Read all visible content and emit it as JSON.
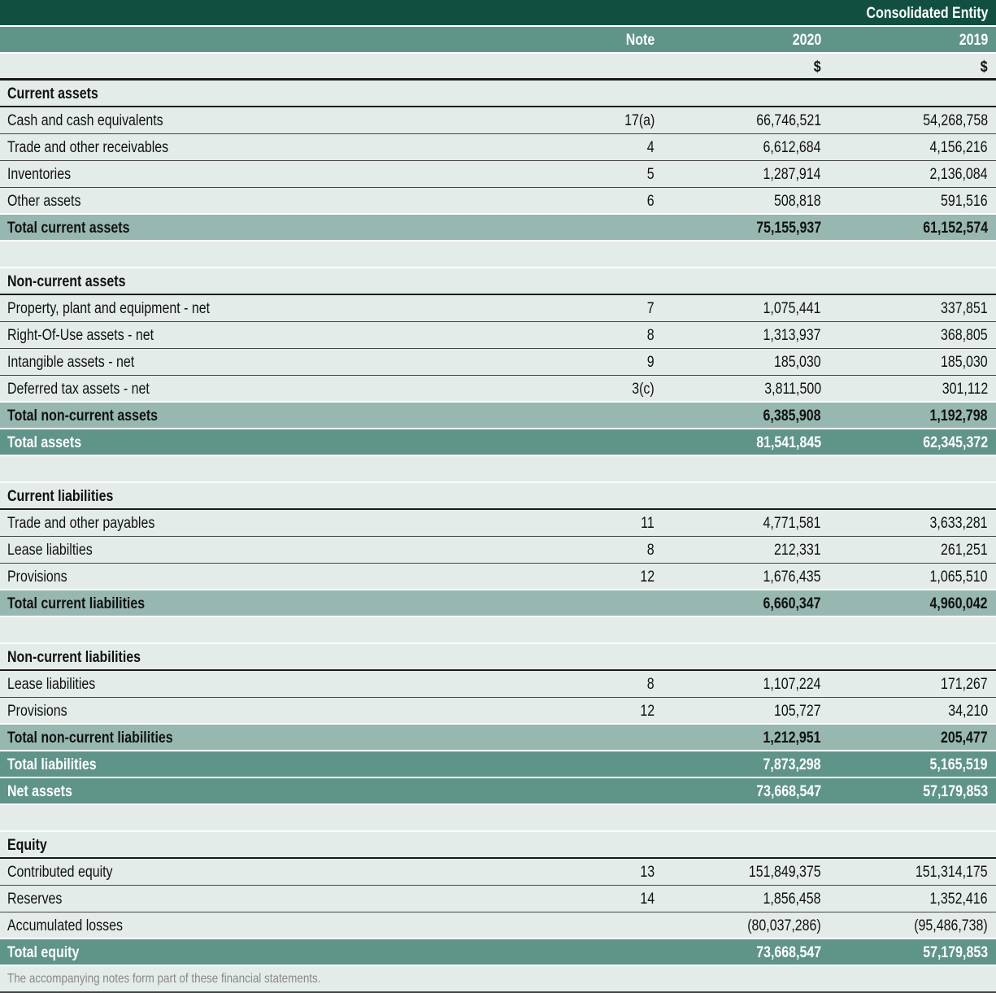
{
  "header": {
    "entity": "Consolidated Entity",
    "note_label": "Note",
    "year_current": "2020",
    "year_prior": "2019",
    "unit_current": "$",
    "unit_prior": "$"
  },
  "rows": [
    {
      "type": "section",
      "label": "Current assets"
    },
    {
      "type": "item",
      "label": "Cash and cash equivalents",
      "note": "17(a)",
      "v2020": "66,746,521",
      "v2019": "54,268,758"
    },
    {
      "type": "item",
      "label": "Trade and other receivables",
      "note": "4",
      "v2020": "6,612,684",
      "v2019": "4,156,216"
    },
    {
      "type": "item",
      "label": "Inventories",
      "note": "5",
      "v2020": "1,287,914",
      "v2019": "2,136,084"
    },
    {
      "type": "item last",
      "label": "Other assets",
      "note": "6",
      "v2020": "508,818",
      "v2019": "591,516"
    },
    {
      "type": "subtotal",
      "label": "Total current assets",
      "v2020": "75,155,937",
      "v2019": "61,152,574"
    },
    {
      "type": "spacer"
    },
    {
      "type": "section",
      "label": "Non-current assets"
    },
    {
      "type": "item",
      "label": "Property, plant and equipment - net",
      "note": "7",
      "v2020": "1,075,441",
      "v2019": "337,851"
    },
    {
      "type": "item",
      "label": "Right-Of-Use assets - net",
      "note": "8",
      "v2020": "1,313,937",
      "v2019": "368,805"
    },
    {
      "type": "item",
      "label": "Intangible assets - net",
      "note": "9",
      "v2020": "185,030",
      "v2019": "185,030"
    },
    {
      "type": "item last",
      "label": "Deferred tax assets - net",
      "note": "3(c)",
      "v2020": "3,811,500",
      "v2019": "301,112"
    },
    {
      "type": "subtotal",
      "label": "Total non-current assets",
      "v2020": "6,385,908",
      "v2019": "1,192,798"
    },
    {
      "type": "total",
      "label": "Total assets",
      "v2020": "81,541,845",
      "v2019": "62,345,372"
    },
    {
      "type": "spacer"
    },
    {
      "type": "section",
      "label": "Current liabilities"
    },
    {
      "type": "item",
      "label": "Trade and other payables",
      "note": "11",
      "v2020": "4,771,581",
      "v2019": "3,633,281"
    },
    {
      "type": "item",
      "label": "Lease liabilties",
      "note": "8",
      "v2020": "212,331",
      "v2019": "261,251"
    },
    {
      "type": "item last",
      "label": "Provisions",
      "note": "12",
      "v2020": "1,676,435",
      "v2019": "1,065,510"
    },
    {
      "type": "subtotal",
      "label": "Total current liabilities",
      "v2020": "6,660,347",
      "v2019": "4,960,042"
    },
    {
      "type": "spacer"
    },
    {
      "type": "section",
      "label": "Non-current liabilities"
    },
    {
      "type": "item",
      "label": "Lease liabilities",
      "note": "8",
      "v2020": "1,107,224",
      "v2019": "171,267"
    },
    {
      "type": "item last",
      "label": "Provisions",
      "note": "12",
      "v2020": "105,727",
      "v2019": "34,210"
    },
    {
      "type": "subtotal",
      "label": "Total non-current liabilities",
      "v2020": "1,212,951",
      "v2019": "205,477"
    },
    {
      "type": "total",
      "label": "Total liabilities",
      "v2020": "7,873,298",
      "v2019": "5,165,519"
    },
    {
      "type": "total",
      "label": "Net assets",
      "v2020": "73,668,547",
      "v2019": "57,179,853"
    },
    {
      "type": "spacer"
    },
    {
      "type": "section",
      "label": "Equity"
    },
    {
      "type": "item",
      "label": "Contributed equity",
      "note": "13",
      "v2020": "151,849,375",
      "v2019": "151,314,175"
    },
    {
      "type": "item",
      "label": "Reserves",
      "note": "14",
      "v2020": "1,856,458",
      "v2019": "1,352,416"
    },
    {
      "type": "item last",
      "label": "Accumulated losses",
      "v2020": "(80,037,286)",
      "v2019": "(95,486,738)"
    },
    {
      "type": "total",
      "label": "Total equity",
      "v2020": "73,668,547",
      "v2019": "57,179,853"
    }
  ],
  "footnote": "The accompanying notes form part of these financial statements.",
  "colors": {
    "header_dark": "#115040",
    "header_mid": "#5f9489",
    "subtotal": "#96b8b0",
    "row_bg": "#e4ecea"
  }
}
